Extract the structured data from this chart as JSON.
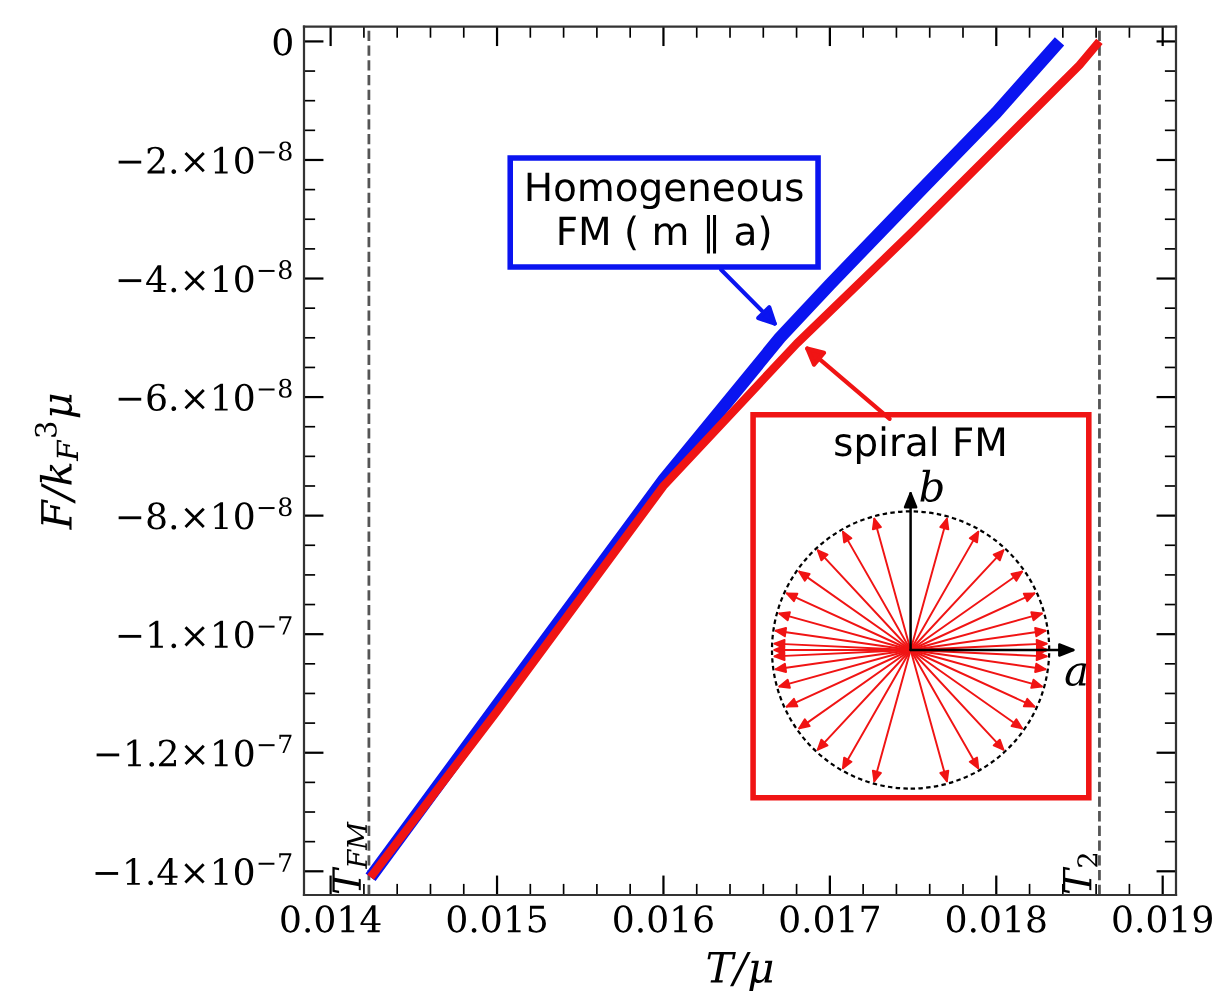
{
  "chart_data": {
    "type": "line",
    "xlabel": "T/μ",
    "ylabel": "F/k$_{F}$$^{3}$μ",
    "xlim": [
      0.01384,
      0.01908
    ],
    "ylim": [
      -1.44e-07,
      2.5e-09
    ],
    "xticks": [
      0.014,
      0.015,
      0.016,
      0.017,
      0.018,
      0.019
    ],
    "yticks": [
      {
        "value": 0,
        "label": "0"
      },
      {
        "value": -2e-08,
        "label": "−2.×10$^{−8}$"
      },
      {
        "value": -4e-08,
        "label": "−4.×10$^{−8}$"
      },
      {
        "value": -6e-08,
        "label": "−6.×10$^{−8}$"
      },
      {
        "value": -8e-08,
        "label": "−8.×10$^{−8}$"
      },
      {
        "value": -1e-07,
        "label": "−1.×10$^{−7}$"
      },
      {
        "value": -1.2e-07,
        "label": "−1.2×10$^{−7}$"
      },
      {
        "value": -1.4e-07,
        "label": "−1.4×10$^{−7}$"
      }
    ],
    "grid": false,
    "legend": false,
    "marker": "none",
    "line_style": "solid",
    "series": [
      {
        "color": "#0a14f0",
        "x": [
          0.01424,
          0.015,
          0.016,
          0.0167,
          0.017,
          0.01755,
          0.018,
          0.01838
        ],
        "values": [
          -1.41e-07,
          -1.12e-07,
          -7.4e-08,
          -5e-08,
          -4.1e-08,
          -2.5e-08,
          -1.2e-08,
          0
        ]
      },
      {
        "color": "#f01414",
        "x": [
          0.01424,
          0.015,
          0.016,
          0.0168,
          0.0175,
          0.018,
          0.0185,
          0.01862
        ],
        "values": [
          -1.41e-07,
          -1.13e-07,
          -7.5e-08,
          -5.1e-08,
          -3.2e-08,
          -1.8e-08,
          -4e-09,
          0
        ]
      }
    ],
    "ref_lines": [
      {
        "axis": "x",
        "value": 0.01423,
        "label": "T$_{FM}$",
        "color": "#555555",
        "line_style": "dashed"
      },
      {
        "axis": "x",
        "value": 0.01862,
        "label": "T$_{2}$",
        "color": "#555555",
        "line_style": "dashed"
      }
    ],
    "annotations": [
      {
        "text": "Homogeneous\nFM ( m ∥ a)",
        "x": 0.0167,
        "y": -4.85e-08
      },
      {
        "text": "spiral FM",
        "x": 0.01683,
        "y": -5.1e-08
      },
      "b",
      "a"
    ]
  }
}
